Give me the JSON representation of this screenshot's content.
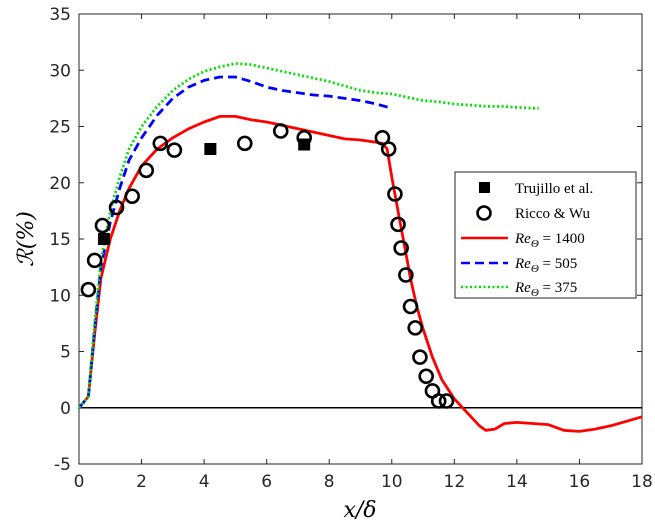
{
  "chart_data": {
    "type": "line",
    "xlabel": "x/δ",
    "ylabel": "ℛ(%)",
    "xlim": [
      0,
      18
    ],
    "ylim": [
      -5,
      35
    ],
    "x_ticks": [
      0,
      2,
      4,
      6,
      8,
      10,
      12,
      14,
      16,
      18
    ],
    "y_ticks": [
      -5,
      0,
      5,
      10,
      15,
      20,
      25,
      30,
      35
    ],
    "grid": false,
    "legend_position": "right",
    "series": [
      {
        "name": "Trujillo et al.",
        "kind": "scatter",
        "marker": "square",
        "color": "#000000",
        "x": [
          0.8,
          4.2,
          7.2
        ],
        "y": [
          15.0,
          23.0,
          23.4
        ]
      },
      {
        "name": "Ricco & Wu",
        "kind": "scatter",
        "marker": "open-circle",
        "color": "#000000",
        "x": [
          0.3,
          0.5,
          0.75,
          1.2,
          1.7,
          2.15,
          2.6,
          3.05,
          5.3,
          6.45,
          7.2,
          9.7,
          9.9,
          10.1,
          10.2,
          10.3,
          10.45,
          10.6,
          10.75,
          10.9,
          11.1,
          11.3,
          11.5,
          11.75
        ],
        "y": [
          10.5,
          13.1,
          16.2,
          17.8,
          18.8,
          21.1,
          23.5,
          22.9,
          23.5,
          24.6,
          24.0,
          24.0,
          23.0,
          19.0,
          16.3,
          14.2,
          11.8,
          9.0,
          7.1,
          4.5,
          2.8,
          1.5,
          0.6,
          0.6
        ]
      },
      {
        "name": "Re_Θ = 1400",
        "kind": "line",
        "style": "solid",
        "color": "#ff0000",
        "x": [
          0,
          0.3,
          0.5,
          0.7,
          1.0,
          1.3,
          1.6,
          2.0,
          2.5,
          3.0,
          3.5,
          4.0,
          4.5,
          5.0,
          5.5,
          6.0,
          6.5,
          7.0,
          7.5,
          8.0,
          8.5,
          9.0,
          9.5,
          9.7,
          9.85,
          10.0,
          10.2,
          10.4,
          10.6,
          10.8,
          11.0,
          11.3,
          11.6,
          12.0,
          12.4,
          12.8,
          13.0,
          13.3,
          13.6,
          14.0,
          14.5,
          15.0,
          15.5,
          16.0,
          16.5,
          17.0,
          17.5,
          18.0
        ],
        "y": [
          0,
          1.0,
          6.5,
          11.5,
          15.0,
          17.5,
          19.5,
          21.5,
          23.0,
          24.0,
          24.8,
          25.4,
          25.9,
          25.9,
          25.6,
          25.4,
          25.1,
          24.8,
          24.5,
          24.2,
          23.9,
          23.8,
          23.6,
          23.5,
          23.0,
          20.5,
          17.5,
          14.5,
          11.5,
          9.0,
          7.0,
          4.5,
          2.5,
          0.8,
          -0.4,
          -1.6,
          -2.0,
          -1.9,
          -1.4,
          -1.3,
          -1.4,
          -1.5,
          -2.0,
          -2.1,
          -1.9,
          -1.6,
          -1.2,
          -0.8
        ]
      },
      {
        "name": "Re_Θ = 505",
        "kind": "line",
        "style": "dashed",
        "color": "#0000ff",
        "x": [
          0,
          0.3,
          0.5,
          0.7,
          1.0,
          1.3,
          1.6,
          2.0,
          2.5,
          3.0,
          3.5,
          4.0,
          4.5,
          5.0,
          5.5,
          6.0,
          6.5,
          7.0,
          7.5,
          8.0,
          8.5,
          9.0,
          9.5,
          9.9
        ],
        "y": [
          0,
          1.0,
          7.0,
          12.5,
          16.5,
          19.5,
          22.0,
          24.0,
          26.0,
          27.5,
          28.5,
          29.1,
          29.4,
          29.4,
          29.0,
          28.5,
          28.2,
          28.0,
          27.8,
          27.7,
          27.5,
          27.3,
          27.0,
          26.7
        ]
      },
      {
        "name": "Re_Θ = 375",
        "kind": "line",
        "style": "dotted",
        "color": "#00e000",
        "x": [
          0,
          0.3,
          0.5,
          0.7,
          1.0,
          1.3,
          1.6,
          2.0,
          2.5,
          3.0,
          3.5,
          4.0,
          4.5,
          5.0,
          5.5,
          6.0,
          6.5,
          7.0,
          7.5,
          8.0,
          8.5,
          9.0,
          9.5,
          10.0,
          10.5,
          11.0,
          11.5,
          12.0,
          12.5,
          13.0,
          13.5,
          14.0,
          14.7
        ],
        "y": [
          0,
          1.0,
          7.5,
          13.0,
          17.5,
          20.5,
          23.0,
          25.0,
          26.8,
          28.2,
          29.2,
          29.9,
          30.3,
          30.6,
          30.5,
          30.2,
          29.9,
          29.6,
          29.3,
          29.0,
          28.6,
          28.2,
          28.0,
          27.9,
          27.6,
          27.3,
          27.2,
          27.0,
          26.9,
          26.8,
          26.8,
          26.7,
          26.6
        ]
      }
    ],
    "reference_lines": [
      {
        "axis": "y",
        "value": 0,
        "color": "#000000"
      }
    ]
  },
  "legend": {
    "entries": [
      {
        "marker": "square",
        "label": "Trujillo et al."
      },
      {
        "marker": "open-circle",
        "label": "Ricco & Wu"
      },
      {
        "line": "solid",
        "color": "#ff0000",
        "symbol": "Re",
        "subscript": "Θ",
        "suffix": " = 1400"
      },
      {
        "line": "dashed",
        "color": "#0000ff",
        "symbol": "Re",
        "subscript": "Θ",
        "suffix": " = 505"
      },
      {
        "line": "dotted",
        "color": "#00e000",
        "symbol": "Re",
        "subscript": "Θ",
        "suffix": " = 375"
      }
    ]
  }
}
